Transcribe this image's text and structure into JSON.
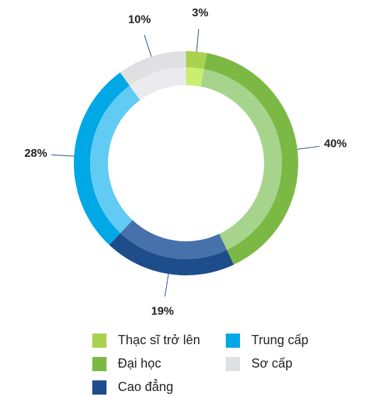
{
  "chart_data": {
    "type": "donut",
    "categories": [
      "Thạc sĩ trở lên",
      "Đại học",
      "Cao đẳng",
      "Trung cấp",
      "Sơ cấp"
    ],
    "values": [
      3,
      40,
      19,
      28,
      10
    ],
    "value_labels": [
      "3%",
      "40%",
      "19%",
      "28%",
      "10%"
    ],
    "colors": [
      "#a9d24f",
      "#7cb944",
      "#1e4d8b",
      "#00a8e6",
      "#dfe0e2"
    ],
    "inner_colors": [
      "#c8ef6e",
      "#a6d48c",
      "#4771aa",
      "#62cbf4",
      "#ebebed"
    ]
  }
}
